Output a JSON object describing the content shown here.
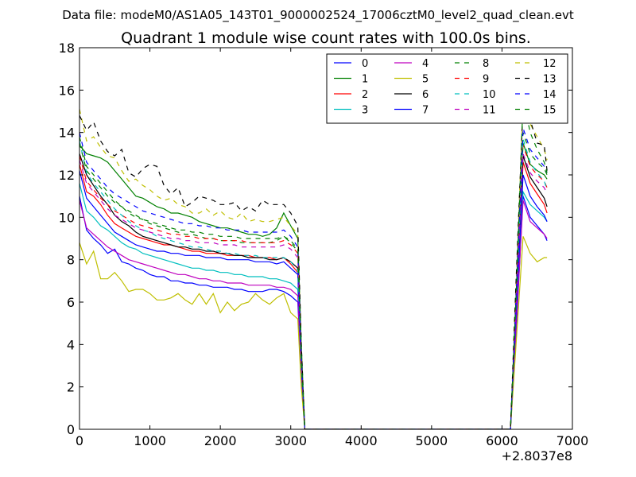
{
  "chart_data": {
    "type": "line",
    "suptitle": "Data file: modeM0/AS1A05_143T01_9000002524_17006cztM0_level2_quad_clean.evt",
    "title": "Quadrant 1 module wise count rates with 100.0s bins.",
    "xlabel": "",
    "ylabel": "",
    "x_offset_label": "+2.8037e8",
    "xlim": [
      0,
      7000
    ],
    "ylim": [
      0,
      18
    ],
    "xticks": [
      0,
      1000,
      2000,
      3000,
      4000,
      5000,
      6000,
      7000
    ],
    "yticks": [
      0,
      2,
      4,
      6,
      8,
      10,
      12,
      14,
      16,
      18
    ],
    "xtick_labels": [
      "0",
      "1000",
      "2000",
      "3000",
      "4000",
      "5000",
      "6000",
      "7000"
    ],
    "ytick_labels": [
      "0",
      "2",
      "4",
      "6",
      "8",
      "10",
      "12",
      "14",
      "16",
      "18"
    ],
    "legend_position": "top-right",
    "x": [
      0,
      100,
      200,
      300,
      400,
      500,
      600,
      700,
      800,
      900,
      1000,
      1100,
      1200,
      1300,
      1400,
      1500,
      1600,
      1700,
      1800,
      1900,
      2000,
      2100,
      2200,
      2300,
      2400,
      2500,
      2600,
      2700,
      2800,
      2900,
      3000,
      3100,
      3150,
      3200,
      3220,
      6100,
      6120,
      6200,
      6300,
      6400,
      6500,
      6600,
      6640
    ],
    "series": [
      {
        "name": "0",
        "color": "#0000ff",
        "dash": "solid",
        "values": [
          11.0,
          9.4,
          9.0,
          8.7,
          8.3,
          8.5,
          7.9,
          7.8,
          7.6,
          7.5,
          7.3,
          7.2,
          7.2,
          7.0,
          7.0,
          6.9,
          6.9,
          6.8,
          6.8,
          6.7,
          6.7,
          6.7,
          6.6,
          6.6,
          6.5,
          6.5,
          6.5,
          6.6,
          6.6,
          6.5,
          6.3,
          6.0,
          2.5,
          0.0,
          0.0,
          0.0,
          0.0,
          4.5,
          11.0,
          10.0,
          9.6,
          9.2,
          8.9
        ]
      },
      {
        "name": "1",
        "color": "#008000",
        "dash": "solid",
        "values": [
          13.4,
          13.0,
          12.9,
          12.8,
          12.6,
          12.2,
          11.8,
          11.4,
          11.0,
          10.9,
          10.7,
          10.5,
          10.4,
          10.2,
          10.2,
          10.1,
          10.0,
          9.8,
          9.7,
          9.6,
          9.5,
          9.5,
          9.4,
          9.3,
          9.2,
          9.2,
          9.1,
          9.2,
          9.5,
          10.2,
          9.6,
          9.0,
          4.0,
          0.0,
          0.0,
          0.0,
          0.0,
          6.0,
          13.5,
          12.5,
          12.2,
          12.0,
          11.8
        ]
      },
      {
        "name": "2",
        "color": "#ff0000",
        "dash": "solid",
        "values": [
          12.5,
          11.2,
          11.0,
          10.6,
          10.1,
          9.7,
          9.5,
          9.3,
          9.1,
          9.0,
          8.9,
          8.8,
          8.7,
          8.7,
          8.6,
          8.5,
          8.4,
          8.4,
          8.3,
          8.3,
          8.3,
          8.2,
          8.2,
          8.2,
          8.2,
          8.1,
          8.1,
          8.1,
          8.0,
          8.1,
          7.8,
          7.4,
          3.0,
          0.0,
          0.0,
          0.0,
          0.0,
          5.5,
          12.6,
          11.6,
          11.1,
          10.6,
          10.2
        ]
      },
      {
        "name": "3",
        "color": "#00bfbf",
        "dash": "solid",
        "values": [
          11.6,
          10.3,
          10.0,
          9.6,
          9.4,
          9.1,
          8.8,
          8.6,
          8.5,
          8.3,
          8.2,
          8.1,
          8.0,
          7.9,
          7.8,
          7.7,
          7.6,
          7.6,
          7.5,
          7.5,
          7.4,
          7.4,
          7.3,
          7.3,
          7.2,
          7.2,
          7.2,
          7.1,
          7.1,
          7.0,
          6.9,
          6.6,
          2.8,
          0.0,
          0.0,
          0.0,
          0.0,
          5.0,
          11.2,
          10.6,
          10.3,
          10.0,
          9.8
        ]
      },
      {
        "name": "4",
        "color": "#bf00bf",
        "dash": "solid",
        "values": [
          10.8,
          9.5,
          9.2,
          8.9,
          8.6,
          8.4,
          8.2,
          8.0,
          7.9,
          7.8,
          7.7,
          7.6,
          7.5,
          7.4,
          7.3,
          7.3,
          7.2,
          7.1,
          7.1,
          7.0,
          7.0,
          6.9,
          6.9,
          6.9,
          6.8,
          6.8,
          6.8,
          6.8,
          6.7,
          6.7,
          6.6,
          6.3,
          2.6,
          0.0,
          0.0,
          0.0,
          0.0,
          4.8,
          10.8,
          9.8,
          9.5,
          9.2,
          9.0
        ]
      },
      {
        "name": "5",
        "color": "#bfbf00",
        "dash": "solid",
        "values": [
          8.8,
          7.8,
          8.4,
          7.1,
          7.1,
          7.4,
          7.0,
          6.5,
          6.6,
          6.6,
          6.4,
          6.1,
          6.1,
          6.2,
          6.4,
          6.1,
          5.9,
          6.4,
          5.9,
          6.4,
          5.5,
          6.0,
          5.6,
          5.9,
          6.0,
          6.4,
          6.1,
          5.9,
          6.2,
          6.4,
          5.5,
          5.2,
          2.0,
          0.0,
          0.0,
          0.0,
          0.0,
          4.0,
          9.1,
          8.3,
          7.9,
          8.1,
          8.1
        ]
      },
      {
        "name": "6",
        "color": "#000000",
        "dash": "solid",
        "values": [
          13.0,
          12.0,
          11.5,
          11.0,
          10.6,
          10.1,
          9.8,
          9.6,
          9.3,
          9.1,
          9.0,
          8.9,
          8.8,
          8.7,
          8.6,
          8.6,
          8.5,
          8.5,
          8.4,
          8.4,
          8.3,
          8.3,
          8.2,
          8.2,
          8.1,
          8.1,
          8.1,
          8.0,
          8.0,
          8.1,
          7.9,
          7.6,
          3.1,
          0.0,
          0.0,
          0.0,
          0.0,
          5.8,
          12.9,
          11.9,
          11.4,
          10.9,
          10.5
        ]
      },
      {
        "name": "7",
        "color": "#0000ff",
        "dash": "solid",
        "values": [
          12.2,
          10.9,
          10.5,
          10.1,
          9.7,
          9.3,
          9.1,
          8.9,
          8.7,
          8.6,
          8.5,
          8.4,
          8.4,
          8.3,
          8.3,
          8.2,
          8.2,
          8.2,
          8.1,
          8.1,
          8.1,
          8.0,
          8.0,
          8.0,
          8.0,
          7.9,
          7.9,
          7.9,
          7.8,
          7.9,
          7.6,
          7.3,
          3.0,
          0.0,
          0.0,
          0.0,
          0.0,
          5.4,
          12.0,
          11.0,
          10.5,
          10.1,
          9.8
        ]
      },
      {
        "name": "8",
        "color": "#008000",
        "dash": "dashed",
        "values": [
          13.8,
          12.4,
          12.0,
          11.6,
          11.2,
          10.8,
          10.5,
          10.2,
          10.0,
          9.9,
          9.7,
          9.6,
          9.5,
          9.4,
          9.3,
          9.2,
          9.2,
          9.1,
          9.0,
          9.0,
          8.9,
          8.9,
          8.9,
          8.8,
          8.8,
          8.8,
          8.8,
          8.8,
          8.9,
          9.1,
          8.8,
          8.4,
          3.4,
          0.0,
          0.0,
          0.0,
          0.0,
          6.2,
          14.0,
          13.0,
          12.6,
          12.3,
          12.0
        ]
      },
      {
        "name": "9",
        "color": "#ff0000",
        "dash": "dashed",
        "values": [
          12.9,
          11.7,
          11.3,
          10.9,
          10.6,
          10.3,
          10.1,
          9.9,
          9.7,
          9.6,
          9.5,
          9.4,
          9.3,
          9.2,
          9.2,
          9.1,
          9.1,
          9.0,
          9.0,
          9.0,
          8.9,
          8.9,
          8.9,
          8.9,
          8.8,
          8.8,
          8.8,
          8.8,
          8.8,
          8.9,
          8.7,
          8.3,
          3.3,
          0.0,
          0.0,
          0.0,
          0.0,
          6.0,
          13.4,
          12.4,
          12.0,
          11.7,
          11.4
        ]
      },
      {
        "name": "10",
        "color": "#00bfbf",
        "dash": "dashed",
        "values": [
          13.6,
          12.1,
          11.6,
          11.2,
          10.8,
          10.4,
          10.1,
          9.8,
          9.6,
          9.4,
          9.3,
          9.1,
          9.0,
          8.9,
          8.8,
          8.7,
          8.6,
          8.6,
          8.5,
          8.4,
          8.4,
          8.3,
          8.3,
          8.2,
          8.2,
          8.2,
          8.1,
          8.1,
          8.1,
          8.1,
          7.9,
          7.5,
          3.1,
          0.0,
          0.0,
          0.0,
          0.0,
          5.9,
          13.7,
          12.6,
          12.1,
          11.7,
          11.3
        ]
      },
      {
        "name": "11",
        "color": "#bf00bf",
        "dash": "dashed",
        "values": [
          12.7,
          11.6,
          11.2,
          10.8,
          10.4,
          10.1,
          9.9,
          9.7,
          9.5,
          9.4,
          9.3,
          9.2,
          9.1,
          9.0,
          9.0,
          8.9,
          8.9,
          8.8,
          8.8,
          8.8,
          8.7,
          8.7,
          8.7,
          8.6,
          8.6,
          8.6,
          8.6,
          8.6,
          8.6,
          8.7,
          8.5,
          8.1,
          3.2,
          0.0,
          0.0,
          0.0,
          0.0,
          5.8,
          13.0,
          12.1,
          11.7,
          11.4,
          11.1
        ]
      },
      {
        "name": "12",
        "color": "#bfbf00",
        "dash": "dashed",
        "values": [
          15.1,
          13.6,
          13.8,
          13.3,
          12.9,
          12.8,
          12.2,
          11.7,
          11.8,
          11.5,
          11.3,
          11.0,
          10.8,
          10.9,
          10.6,
          10.5,
          10.2,
          10.2,
          10.4,
          10.1,
          10.3,
          10.0,
          9.9,
          10.2,
          9.8,
          9.9,
          9.8,
          9.8,
          9.9,
          10.0,
          9.6,
          9.2,
          3.8,
          0.0,
          0.0,
          0.0,
          0.0,
          6.8,
          15.5,
          14.4,
          13.8,
          13.2,
          12.7
        ]
      },
      {
        "name": "13",
        "color": "#000000",
        "dash": "dashed",
        "values": [
          14.8,
          14.1,
          14.5,
          13.6,
          13.1,
          12.9,
          13.2,
          12.1,
          11.9,
          12.3,
          12.5,
          12.4,
          11.5,
          11.1,
          11.4,
          10.5,
          10.7,
          11.0,
          10.9,
          10.8,
          10.6,
          10.6,
          10.7,
          10.3,
          10.5,
          10.3,
          10.8,
          10.6,
          10.6,
          10.6,
          10.2,
          9.6,
          4.0,
          0.0,
          0.0,
          0.0,
          0.0,
          7.0,
          15.3,
          14.6,
          13.5,
          13.4,
          12.2
        ]
      },
      {
        "name": "14",
        "color": "#0000ff",
        "dash": "dashed",
        "values": [
          14.0,
          12.6,
          12.2,
          11.8,
          11.4,
          11.1,
          10.9,
          10.7,
          10.5,
          10.3,
          10.2,
          10.1,
          10.0,
          9.9,
          9.8,
          9.7,
          9.7,
          9.6,
          9.6,
          9.5,
          9.5,
          9.4,
          9.4,
          9.4,
          9.3,
          9.3,
          9.3,
          9.3,
          9.3,
          9.4,
          9.1,
          8.6,
          3.5,
          0.0,
          0.0,
          0.0,
          0.0,
          6.3,
          14.2,
          13.2,
          12.8,
          12.4,
          12.1
        ]
      },
      {
        "name": "15",
        "color": "#008000",
        "dash": "dashed",
        "values": [
          13.5,
          12.2,
          11.8,
          11.4,
          11.0,
          10.7,
          10.5,
          10.3,
          10.1,
          9.9,
          9.8,
          9.7,
          9.6,
          9.5,
          9.4,
          9.4,
          9.3,
          9.3,
          9.2,
          9.2,
          9.1,
          9.1,
          9.1,
          9.0,
          9.0,
          9.0,
          9.0,
          9.0,
          9.0,
          9.1,
          8.9,
          8.5,
          3.4,
          0.0,
          0.0,
          0.0,
          0.0,
          6.1,
          15.6,
          14.0,
          13.2,
          12.6,
          12.1
        ]
      }
    ]
  }
}
